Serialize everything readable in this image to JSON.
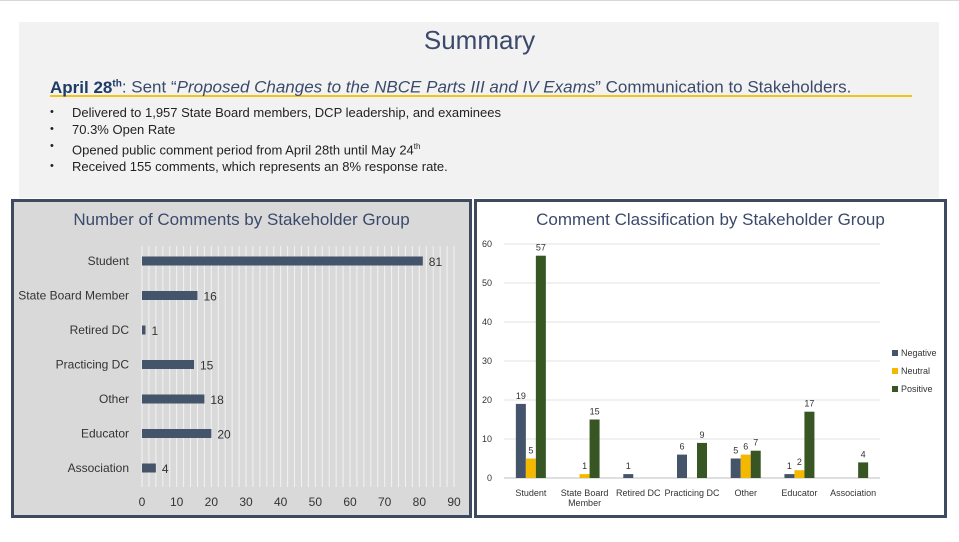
{
  "header": {
    "title": "Summary",
    "date": "April 28",
    "date_suffix": "th",
    "subtitle_pre": ": Sent “",
    "subtitle_italic": "Proposed Changes to the NBCE Parts III and IV Exams",
    "subtitle_post": "” Communication to Stakeholders."
  },
  "bullets": [
    {
      "text": "Delivered to 1,957 State Board members, DCP leadership, and examinees",
      "sup": ""
    },
    {
      "text": "70.3% Open Rate",
      "sup": ""
    },
    {
      "text": "Opened public comment period from April 28th until May 24",
      "sup": "th"
    },
    {
      "text": "Received 155 comments, which represents an 8% response rate.",
      "sup": ""
    }
  ],
  "colors": {
    "navy": "#44546a",
    "neutral": "#f5b800",
    "positive": "#375623",
    "accent_rule": "#f0c419"
  },
  "chart_data": [
    {
      "type": "bar",
      "orientation": "horizontal",
      "title": "Number of Comments by Stakeholder Group",
      "categories": [
        "Student",
        "State Board Member",
        "Retired DC",
        "Practicing DC",
        "Other",
        "Educator",
        "Association"
      ],
      "values": [
        81,
        16,
        1,
        15,
        18,
        20,
        4
      ],
      "xlim": [
        0,
        90
      ],
      "xticks": [
        0,
        10,
        20,
        30,
        40,
        50,
        60,
        70,
        80,
        90
      ],
      "grid": true,
      "color": "#44546a"
    },
    {
      "type": "bar",
      "orientation": "vertical",
      "title": "Comment Classification by Stakeholder Group",
      "categories": [
        "Student",
        "State Board Member",
        "Retired DC",
        "Practicing DC",
        "Other",
        "Educator",
        "Association"
      ],
      "category_lines": [
        [
          "Student"
        ],
        [
          "State Board",
          "Member"
        ],
        [
          "Retired DC"
        ],
        [
          "Practicing DC"
        ],
        [
          "Other"
        ],
        [
          "Educator"
        ],
        [
          "Association"
        ]
      ],
      "series": [
        {
          "name": "Negative",
          "values": [
            19,
            null,
            1,
            6,
            5,
            1,
            null
          ],
          "color": "#44546a"
        },
        {
          "name": "Neutral",
          "values": [
            5,
            1,
            null,
            null,
            6,
            2,
            null
          ],
          "color": "#f5b800"
        },
        {
          "name": "Positive",
          "values": [
            57,
            15,
            null,
            9,
            7,
            17,
            4
          ],
          "color": "#375623"
        }
      ],
      "ylim": [
        0,
        60
      ],
      "yticks": [
        0,
        10,
        20,
        30,
        40,
        50,
        60
      ],
      "grid": true,
      "legend": "right"
    }
  ]
}
